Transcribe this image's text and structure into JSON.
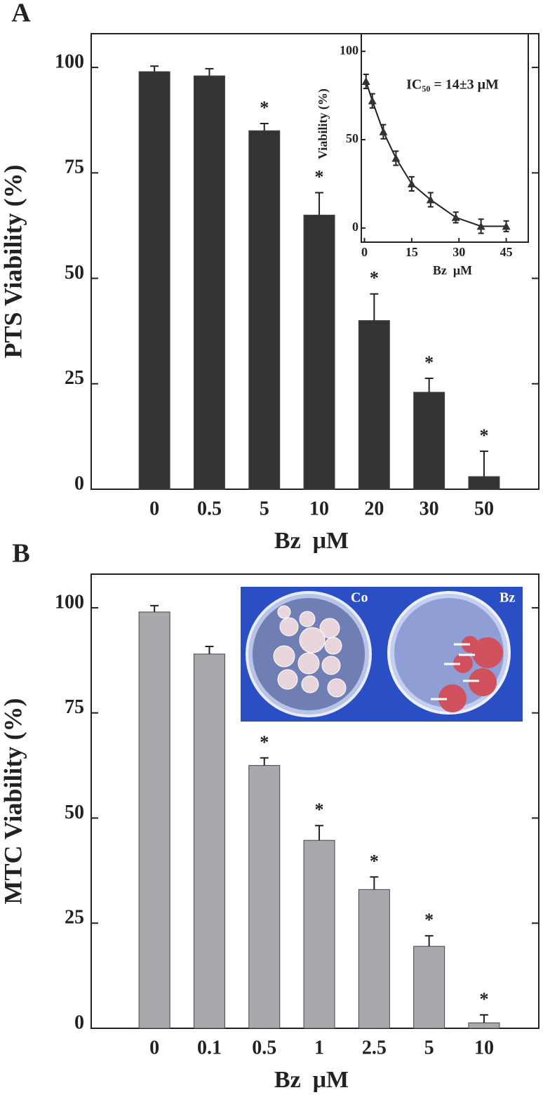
{
  "chart_data": [
    {
      "type": "bar",
      "panel": "A",
      "ylabel": "PTS Viability (%)",
      "xlabel": "Bz  μM",
      "categories": [
        "0",
        "0.5",
        "5",
        "10",
        "20",
        "30",
        "50"
      ],
      "values": [
        99,
        98,
        85,
        65,
        40,
        23,
        3
      ],
      "errors": [
        1.3,
        1.7,
        1.7,
        5.3,
        6.3,
        3.3,
        6
      ],
      "significance": [
        null,
        null,
        "*",
        "*",
        "*",
        "*",
        "*"
      ],
      "color": "#333333",
      "ylim": [
        0,
        108
      ],
      "yticks": [
        0,
        25,
        50,
        75,
        100
      ]
    },
    {
      "type": "line",
      "inset": true,
      "ylabel": "Viability (%)",
      "xlabel": "Bz  μM",
      "annotation": "IC₅₀ = 14±3 μM",
      "x": [
        0.5,
        2.5,
        6,
        10,
        15,
        21,
        29,
        37,
        45
      ],
      "values": [
        83,
        72,
        54.5,
        39.5,
        25,
        16,
        6,
        1,
        1
      ],
      "errors": [
        4,
        4,
        4,
        4,
        4,
        4,
        3,
        4,
        3
      ],
      "color": "#333333",
      "xlim": [
        -1,
        52
      ],
      "ylim": [
        -8,
        110
      ],
      "xticks": [
        0,
        15,
        30,
        45
      ],
      "yticks": [
        0,
        50,
        100
      ]
    },
    {
      "type": "bar",
      "panel": "B",
      "ylabel": "MTC Viability (%)",
      "xlabel": "Bz  μM",
      "categories": [
        "0",
        "0.1",
        "0.5",
        "1",
        "2.5",
        "5",
        "10"
      ],
      "values": [
        99,
        89,
        62.5,
        44.7,
        33,
        19.5,
        1.3
      ],
      "errors": [
        1.5,
        1.8,
        1.8,
        3.5,
        3,
        2.5,
        1.9
      ],
      "significance": [
        null,
        null,
        "*",
        "*",
        "*",
        "*",
        "*"
      ],
      "image_labels": [
        "Co",
        "Bz"
      ],
      "color": "#a8a9ad",
      "ylim": [
        0,
        108
      ],
      "yticks": [
        0,
        25,
        50,
        75,
        100
      ]
    }
  ]
}
